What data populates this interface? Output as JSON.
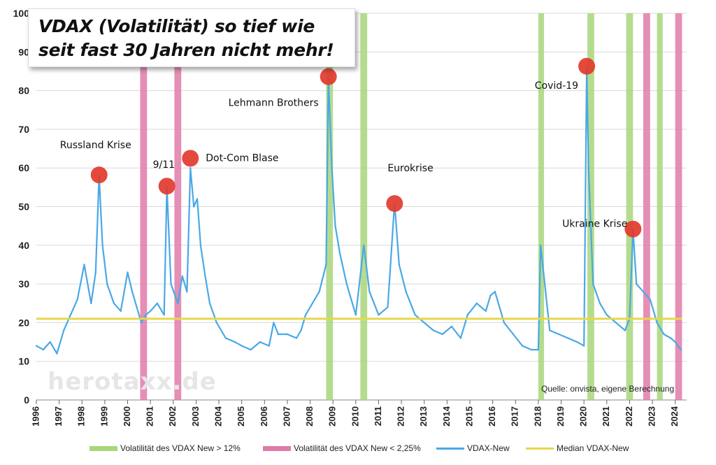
{
  "title": {
    "line1": "VDAX (Volatilität) so tief wie",
    "line2": "seit fast 30 Jahren nicht mehr!"
  },
  "watermark": "herotaxx.de",
  "source": "Quelle: onvista, eigene Berechnung",
  "colors": {
    "vdax_line": "#4aa8e6",
    "median_line": "#e6d84b",
    "band_high": "#a8d67a",
    "band_low": "#e07aa9",
    "marker": "#e23a2e",
    "grid": "#d9d9d9"
  },
  "chart_data": {
    "type": "line",
    "xlim": [
      1996,
      2024.5
    ],
    "ylim": [
      0,
      100
    ],
    "x_ticks": [
      "1996",
      "1997",
      "1998",
      "1999",
      "2000",
      "2001",
      "2002",
      "2003",
      "2004",
      "2005",
      "2006",
      "2007",
      "2008",
      "2009",
      "2010",
      "2011",
      "2012",
      "2013",
      "2014",
      "2015",
      "2016",
      "2017",
      "2018",
      "2019",
      "2020",
      "2021",
      "2022",
      "2023",
      "2024"
    ],
    "y_ticks": [
      "0",
      "10",
      "20",
      "30",
      "40",
      "50",
      "60",
      "70",
      "80",
      "90",
      "100"
    ],
    "grid": true,
    "legend_position": "bottom",
    "series": [
      {
        "name": "VDAX-New",
        "x": [
          1996.0,
          1996.3,
          1996.6,
          1996.9,
          1997.2,
          1997.5,
          1997.8,
          1998.1,
          1998.4,
          1998.6,
          1998.75,
          1998.9,
          1999.1,
          1999.4,
          1999.7,
          2000.0,
          2000.2,
          2000.4,
          2000.6,
          2000.8,
          2001.0,
          2001.3,
          2001.6,
          2001.72,
          2001.9,
          2002.2,
          2002.4,
          2002.6,
          2002.75,
          2002.9,
          2003.05,
          2003.2,
          2003.4,
          2003.6,
          2003.9,
          2004.3,
          2004.7,
          2005.0,
          2005.4,
          2005.8,
          2006.2,
          2006.4,
          2006.6,
          2007.0,
          2007.4,
          2007.6,
          2007.8,
          2008.1,
          2008.4,
          2008.7,
          2008.8,
          2008.95,
          2009.1,
          2009.3,
          2009.6,
          2010.0,
          2010.35,
          2010.6,
          2011.0,
          2011.4,
          2011.7,
          2011.9,
          2012.2,
          2012.6,
          2013.0,
          2013.4,
          2013.8,
          2014.2,
          2014.6,
          2014.9,
          2015.3,
          2015.7,
          2015.9,
          2016.1,
          2016.5,
          2016.9,
          2017.3,
          2017.7,
          2018.0,
          2018.1,
          2018.5,
          2018.9,
          2019.3,
          2019.7,
          2020.0,
          2020.12,
          2020.2,
          2020.4,
          2020.7,
          2021.0,
          2021.4,
          2021.8,
          2022.0,
          2022.15,
          2022.3,
          2022.6,
          2022.9,
          2023.2,
          2023.5,
          2023.8,
          2024.0,
          2024.25
        ],
        "values": [
          14,
          13,
          15,
          12,
          18,
          22,
          26,
          35,
          25,
          33,
          58,
          40,
          30,
          25,
          23,
          33,
          28,
          24,
          20,
          22,
          23,
          25,
          22,
          55,
          30,
          25,
          32,
          28,
          60,
          50,
          52,
          40,
          32,
          25,
          20,
          16,
          15,
          14,
          13,
          15,
          14,
          20,
          17,
          17,
          16,
          18,
          22,
          25,
          28,
          35,
          83,
          60,
          45,
          38,
          30,
          22,
          40,
          28,
          22,
          24,
          51,
          35,
          28,
          22,
          20,
          18,
          17,
          19,
          16,
          22,
          25,
          23,
          27,
          28,
          20,
          17,
          14,
          13,
          13,
          40,
          18,
          17,
          16,
          15,
          14,
          86,
          60,
          30,
          25,
          22,
          20,
          18,
          21,
          44,
          30,
          28,
          26,
          20,
          17,
          16,
          15,
          13
        ]
      },
      {
        "name": "Median VDAX-New",
        "x": [
          1996,
          2024.3
        ],
        "values": [
          21,
          21
        ]
      }
    ],
    "bands": [
      {
        "type": "low",
        "start": 2000.55,
        "end": 2000.85
      },
      {
        "type": "low",
        "start": 2002.05,
        "end": 2002.35
      },
      {
        "type": "high",
        "start": 2008.7,
        "end": 2009.0
      },
      {
        "type": "high",
        "start": 2010.2,
        "end": 2010.5
      },
      {
        "type": "high",
        "start": 2018.0,
        "end": 2018.25
      },
      {
        "type": "high",
        "start": 2020.15,
        "end": 2020.45
      },
      {
        "type": "high",
        "start": 2021.85,
        "end": 2022.15
      },
      {
        "type": "low",
        "start": 2022.6,
        "end": 2022.9
      },
      {
        "type": "high",
        "start": 2023.2,
        "end": 2023.45
      },
      {
        "type": "low",
        "start": 2024.0,
        "end": 2024.3
      }
    ],
    "annotations": [
      {
        "label": "Russland Krise",
        "x": 1998.75,
        "y": 58.2
      },
      {
        "label": "9/11",
        "x": 2001.72,
        "y": 55.3
      },
      {
        "label": "Dot-Com Blase",
        "x": 2002.75,
        "y": 62.5
      },
      {
        "label": "Lehmann Brothers",
        "x": 2008.8,
        "y": 83.6
      },
      {
        "label": "Eurokrise",
        "x": 2011.7,
        "y": 50.8
      },
      {
        "label": "Covid-19",
        "x": 2020.12,
        "y": 86.3
      },
      {
        "label": "Ukraine Krise",
        "x": 2022.15,
        "y": 44.2
      }
    ],
    "legend": [
      {
        "label": "Volatilität des VDAX New > 12%",
        "kind": "band",
        "color": "#a8d67a"
      },
      {
        "label": "Volatilität des VDAX New < 2,25%",
        "kind": "band",
        "color": "#e07aa9"
      },
      {
        "label": "VDAX-New",
        "kind": "line",
        "color": "#4aa8e6"
      },
      {
        "label": "Median VDAX-New",
        "kind": "line",
        "color": "#e6d84b"
      }
    ]
  }
}
